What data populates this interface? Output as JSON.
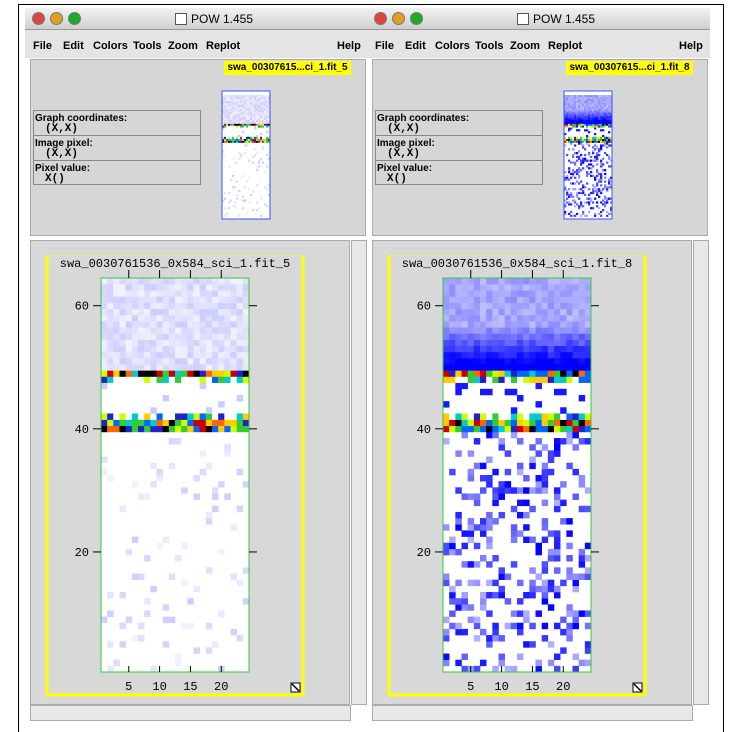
{
  "windows": [
    {
      "title": "POW 1.455",
      "menu": [
        "File",
        "Edit",
        "Colors",
        "Tools",
        "Zoom",
        "Replot"
      ],
      "help": "Help",
      "tag": "swa_00307615...ci_1.fit_5",
      "info": [
        {
          "label": "Graph coordinates:",
          "value": "(X,X)"
        },
        {
          "label": "Image pixel:",
          "value": "(X,X)"
        },
        {
          "label": "Pixel value:",
          "value": "X()"
        }
      ],
      "plot": {
        "title": "swa_0030761536_0x584_sci_1.fit_5",
        "yticks": [
          20,
          40,
          60
        ],
        "xticks": [
          5,
          10,
          15,
          20
        ]
      }
    },
    {
      "title": "POW 1.455",
      "menu": [
        "File",
        "Edit",
        "Colors",
        "Tools",
        "Zoom",
        "Replot"
      ],
      "help": "Help",
      "tag": "swa_00307615...ci_1.fit_8",
      "info": [
        {
          "label": "Graph coordinates:",
          "value": "(X,X)"
        },
        {
          "label": "Image pixel:",
          "value": "(X,X)"
        },
        {
          "label": "Pixel value:",
          "value": "X()"
        }
      ],
      "plot": {
        "title": "swa_0030761536_0x584_sci_1.fit_8",
        "yticks": [
          20,
          40,
          60
        ],
        "xticks": [
          5,
          10,
          15,
          20
        ]
      }
    }
  ]
}
